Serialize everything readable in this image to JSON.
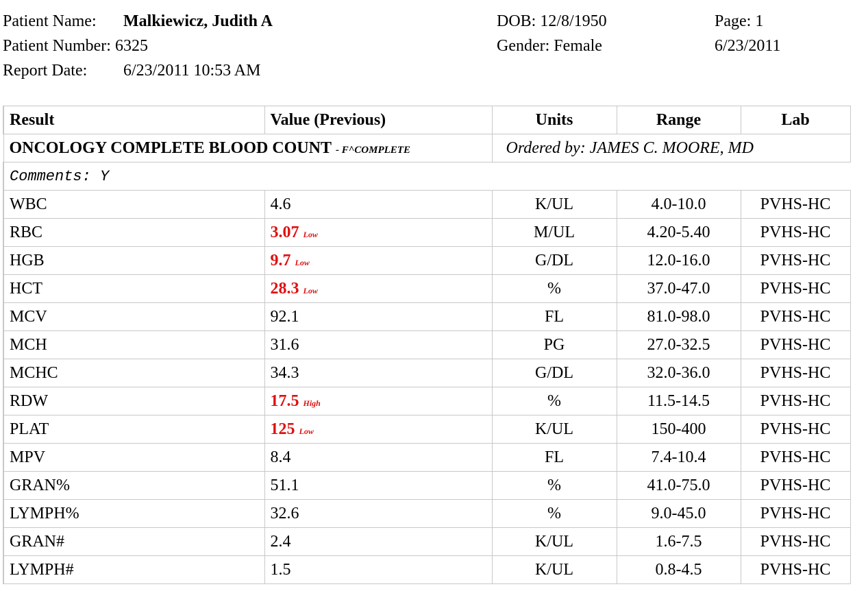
{
  "patient": {
    "name_label": "Patient Name:",
    "name": "Malkiewicz, Judith A",
    "number_label": "Patient Number:",
    "number": "6325",
    "report_date_label": "Report Date:",
    "report_date": "6/23/2011 10:53 AM",
    "dob_label": "DOB:",
    "dob": "12/8/1950",
    "gender_label": "Gender:",
    "gender": "Female",
    "page_label": "Page:",
    "page": "1",
    "print_date": "6/23/2011"
  },
  "table": {
    "headers": [
      "Result",
      "Value (Previous)",
      "Units",
      "Range",
      "Lab"
    ],
    "section": {
      "title": "ONCOLOGY COMPLETE BLOOD COUNT",
      "code": "- F^COMPLETE",
      "ordered_by": "Ordered by: JAMES C. MOORE, MD"
    },
    "comments": "Comments: Y",
    "rows": [
      {
        "result": "WBC",
        "value": "4.6",
        "flag": "",
        "units": "K/UL",
        "range": "4.0-10.0",
        "lab": "PVHS-HC"
      },
      {
        "result": "RBC",
        "value": "3.07",
        "flag": "Low",
        "units": "M/UL",
        "range": "4.20-5.40",
        "lab": "PVHS-HC"
      },
      {
        "result": "HGB",
        "value": "9.7",
        "flag": "Low",
        "units": "G/DL",
        "range": "12.0-16.0",
        "lab": "PVHS-HC"
      },
      {
        "result": "HCT",
        "value": "28.3",
        "flag": "Low",
        "units": "%",
        "range": "37.0-47.0",
        "lab": "PVHS-HC"
      },
      {
        "result": "MCV",
        "value": "92.1",
        "flag": "",
        "units": "FL",
        "range": "81.0-98.0",
        "lab": "PVHS-HC"
      },
      {
        "result": "MCH",
        "value": "31.6",
        "flag": "",
        "units": "PG",
        "range": "27.0-32.5",
        "lab": "PVHS-HC"
      },
      {
        "result": "MCHC",
        "value": "34.3",
        "flag": "",
        "units": "G/DL",
        "range": "32.0-36.0",
        "lab": "PVHS-HC"
      },
      {
        "result": "RDW",
        "value": "17.5",
        "flag": "High",
        "units": "%",
        "range": "11.5-14.5",
        "lab": "PVHS-HC"
      },
      {
        "result": "PLAT",
        "value": "125",
        "flag": "Low",
        "units": "K/UL",
        "range": "150-400",
        "lab": "PVHS-HC"
      },
      {
        "result": "MPV",
        "value": "8.4",
        "flag": "",
        "units": "FL",
        "range": "7.4-10.4",
        "lab": "PVHS-HC"
      },
      {
        "result": "GRAN%",
        "value": "51.1",
        "flag": "",
        "units": "%",
        "range": "41.0-75.0",
        "lab": "PVHS-HC"
      },
      {
        "result": "LYMPH%",
        "value": "32.6",
        "flag": "",
        "units": "%",
        "range": "9.0-45.0",
        "lab": "PVHS-HC"
      },
      {
        "result": "GRAN#",
        "value": "2.4",
        "flag": "",
        "units": "K/UL",
        "range": "1.6-7.5",
        "lab": "PVHS-HC"
      },
      {
        "result": "LYMPH#",
        "value": "1.5",
        "flag": "",
        "units": "K/UL",
        "range": "0.8-4.5",
        "lab": "PVHS-HC"
      }
    ]
  },
  "colors": {
    "abnormal": "#e01010",
    "grid": "#c8c8c8"
  }
}
